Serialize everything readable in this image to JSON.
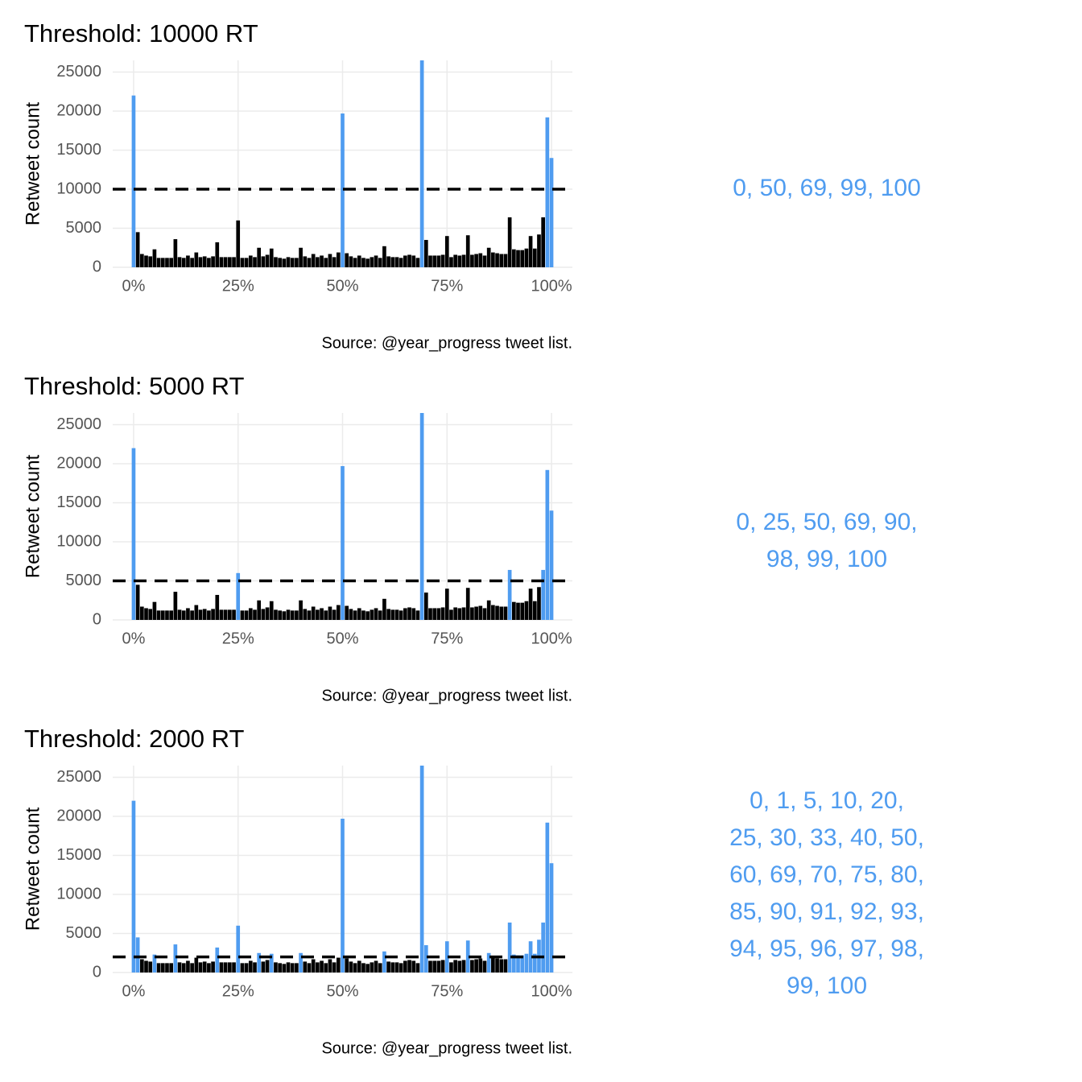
{
  "chart_data": [
    {
      "type": "bar",
      "title": "Threshold: 10000 RT",
      "y_label": "Retweet count",
      "caption": "Source: @year_progress tweet list.",
      "annotation_lines": [
        "0, 50, 69, 99, 100"
      ],
      "threshold": 10000,
      "color": "#000000",
      "highlight_color": "#4f9cf0",
      "annotation_color": "#4f9cf0",
      "xlim": [
        -5,
        105
      ],
      "ylim": [
        0,
        26500
      ],
      "yticks": [
        0,
        5000,
        10000,
        15000,
        20000,
        25000
      ],
      "xticks": [
        {
          "value": 0,
          "label": "0%"
        },
        {
          "value": 25,
          "label": "25%"
        },
        {
          "value": 50,
          "label": "50%"
        },
        {
          "value": 75,
          "label": "75%"
        },
        {
          "value": 100,
          "label": "100%"
        }
      ],
      "grid": true,
      "x": [
        0,
        1,
        2,
        3,
        4,
        5,
        6,
        7,
        8,
        9,
        10,
        11,
        12,
        13,
        14,
        15,
        16,
        17,
        18,
        19,
        20,
        21,
        22,
        23,
        24,
        25,
        26,
        27,
        28,
        29,
        30,
        31,
        32,
        33,
        34,
        35,
        36,
        37,
        38,
        39,
        40,
        41,
        42,
        43,
        44,
        45,
        46,
        47,
        48,
        49,
        50,
        51,
        52,
        53,
        54,
        55,
        56,
        57,
        58,
        59,
        60,
        61,
        62,
        63,
        64,
        65,
        66,
        67,
        68,
        69,
        70,
        71,
        72,
        73,
        74,
        75,
        76,
        77,
        78,
        79,
        80,
        81,
        82,
        83,
        84,
        85,
        86,
        87,
        88,
        89,
        90,
        91,
        92,
        93,
        94,
        95,
        96,
        97,
        98,
        99,
        100
      ],
      "values": [
        22000,
        4500,
        1700,
        1500,
        1400,
        2300,
        1200,
        1200,
        1200,
        1200,
        3600,
        1300,
        1200,
        1500,
        1200,
        1900,
        1300,
        1400,
        1200,
        1400,
        3200,
        1300,
        1300,
        1300,
        1300,
        6000,
        1200,
        1200,
        1500,
        1300,
        2500,
        1400,
        1600,
        2400,
        1300,
        1200,
        1100,
        1300,
        1200,
        1200,
        2500,
        1400,
        1200,
        1700,
        1300,
        1500,
        1200,
        1700,
        1300,
        1900,
        19700,
        1800,
        1400,
        1200,
        1500,
        1200,
        1100,
        1300,
        1500,
        1200,
        2700,
        1400,
        1300,
        1300,
        1200,
        1500,
        1600,
        1500,
        1200,
        26500,
        3500,
        1500,
        1500,
        1500,
        1600,
        4000,
        1300,
        1600,
        1500,
        1600,
        4100,
        1600,
        1700,
        1800,
        1500,
        2500,
        1900,
        1800,
        1700,
        1700,
        6400,
        2300,
        2200,
        2200,
        2400,
        4000,
        2400,
        4200,
        6400,
        19200,
        14000
      ]
    },
    {
      "type": "bar",
      "title": "Threshold: 5000 RT",
      "y_label": "Retweet count",
      "caption": "Source: @year_progress tweet list.",
      "annotation_lines": [
        "0, 25, 50, 69, 90,",
        "98, 99, 100"
      ],
      "threshold": 5000,
      "color": "#000000",
      "highlight_color": "#4f9cf0",
      "annotation_color": "#4f9cf0",
      "xlim": [
        -5,
        105
      ],
      "ylim": [
        0,
        26500
      ],
      "yticks": [
        0,
        5000,
        10000,
        15000,
        20000,
        25000
      ],
      "xticks": [
        {
          "value": 0,
          "label": "0%"
        },
        {
          "value": 25,
          "label": "25%"
        },
        {
          "value": 50,
          "label": "50%"
        },
        {
          "value": 75,
          "label": "75%"
        },
        {
          "value": 100,
          "label": "100%"
        }
      ],
      "grid": true,
      "x": [
        0,
        1,
        2,
        3,
        4,
        5,
        6,
        7,
        8,
        9,
        10,
        11,
        12,
        13,
        14,
        15,
        16,
        17,
        18,
        19,
        20,
        21,
        22,
        23,
        24,
        25,
        26,
        27,
        28,
        29,
        30,
        31,
        32,
        33,
        34,
        35,
        36,
        37,
        38,
        39,
        40,
        41,
        42,
        43,
        44,
        45,
        46,
        47,
        48,
        49,
        50,
        51,
        52,
        53,
        54,
        55,
        56,
        57,
        58,
        59,
        60,
        61,
        62,
        63,
        64,
        65,
        66,
        67,
        68,
        69,
        70,
        71,
        72,
        73,
        74,
        75,
        76,
        77,
        78,
        79,
        80,
        81,
        82,
        83,
        84,
        85,
        86,
        87,
        88,
        89,
        90,
        91,
        92,
        93,
        94,
        95,
        96,
        97,
        98,
        99,
        100
      ],
      "values": [
        22000,
        4500,
        1700,
        1500,
        1400,
        2300,
        1200,
        1200,
        1200,
        1200,
        3600,
        1300,
        1200,
        1500,
        1200,
        1900,
        1300,
        1400,
        1200,
        1400,
        3200,
        1300,
        1300,
        1300,
        1300,
        6000,
        1200,
        1200,
        1500,
        1300,
        2500,
        1400,
        1600,
        2400,
        1300,
        1200,
        1100,
        1300,
        1200,
        1200,
        2500,
        1400,
        1200,
        1700,
        1300,
        1500,
        1200,
        1700,
        1300,
        1900,
        19700,
        1800,
        1400,
        1200,
        1500,
        1200,
        1100,
        1300,
        1500,
        1200,
        2700,
        1400,
        1300,
        1300,
        1200,
        1500,
        1600,
        1500,
        1200,
        26500,
        3500,
        1500,
        1500,
        1500,
        1600,
        4000,
        1300,
        1600,
        1500,
        1600,
        4100,
        1600,
        1700,
        1800,
        1500,
        2500,
        1900,
        1800,
        1700,
        1700,
        6400,
        2300,
        2200,
        2200,
        2400,
        4000,
        2400,
        4200,
        6400,
        19200,
        14000
      ]
    },
    {
      "type": "bar",
      "title": "Threshold: 2000 RT",
      "y_label": "Retweet count",
      "caption": "Source: @year_progress tweet list.",
      "annotation_lines": [
        "0, 1, 5, 10, 20,",
        "25, 30, 33, 40, 50,",
        "60, 69, 70, 75, 80,",
        "85, 90, 91, 92, 93,",
        "94, 95, 96, 97, 98,",
        "99, 100"
      ],
      "threshold": 2000,
      "color": "#000000",
      "highlight_color": "#4f9cf0",
      "annotation_color": "#4f9cf0",
      "xlim": [
        -5,
        105
      ],
      "ylim": [
        0,
        26500
      ],
      "yticks": [
        0,
        5000,
        10000,
        15000,
        20000,
        25000
      ],
      "xticks": [
        {
          "value": 0,
          "label": "0%"
        },
        {
          "value": 25,
          "label": "25%"
        },
        {
          "value": 50,
          "label": "50%"
        },
        {
          "value": 75,
          "label": "75%"
        },
        {
          "value": 100,
          "label": "100%"
        }
      ],
      "grid": true,
      "x": [
        0,
        1,
        2,
        3,
        4,
        5,
        6,
        7,
        8,
        9,
        10,
        11,
        12,
        13,
        14,
        15,
        16,
        17,
        18,
        19,
        20,
        21,
        22,
        23,
        24,
        25,
        26,
        27,
        28,
        29,
        30,
        31,
        32,
        33,
        34,
        35,
        36,
        37,
        38,
        39,
        40,
        41,
        42,
        43,
        44,
        45,
        46,
        47,
        48,
        49,
        50,
        51,
        52,
        53,
        54,
        55,
        56,
        57,
        58,
        59,
        60,
        61,
        62,
        63,
        64,
        65,
        66,
        67,
        68,
        69,
        70,
        71,
        72,
        73,
        74,
        75,
        76,
        77,
        78,
        79,
        80,
        81,
        82,
        83,
        84,
        85,
        86,
        87,
        88,
        89,
        90,
        91,
        92,
        93,
        94,
        95,
        96,
        97,
        98,
        99,
        100
      ],
      "values": [
        22000,
        4500,
        1700,
        1500,
        1400,
        2300,
        1200,
        1200,
        1200,
        1200,
        3600,
        1300,
        1200,
        1500,
        1200,
        1900,
        1300,
        1400,
        1200,
        1400,
        3200,
        1300,
        1300,
        1300,
        1300,
        6000,
        1200,
        1200,
        1500,
        1300,
        2500,
        1400,
        1600,
        2400,
        1300,
        1200,
        1100,
        1300,
        1200,
        1200,
        2500,
        1400,
        1200,
        1700,
        1300,
        1500,
        1200,
        1700,
        1300,
        1900,
        19700,
        1800,
        1400,
        1200,
        1500,
        1200,
        1100,
        1300,
        1500,
        1200,
        2700,
        1400,
        1300,
        1300,
        1200,
        1500,
        1600,
        1500,
        1200,
        26500,
        3500,
        1500,
        1500,
        1500,
        1600,
        4000,
        1300,
        1600,
        1500,
        1600,
        4100,
        1600,
        1700,
        1800,
        1500,
        2500,
        1900,
        1800,
        1700,
        1700,
        6400,
        2300,
        2200,
        2200,
        2400,
        4000,
        2400,
        4200,
        6400,
        19200,
        14000
      ]
    }
  ]
}
